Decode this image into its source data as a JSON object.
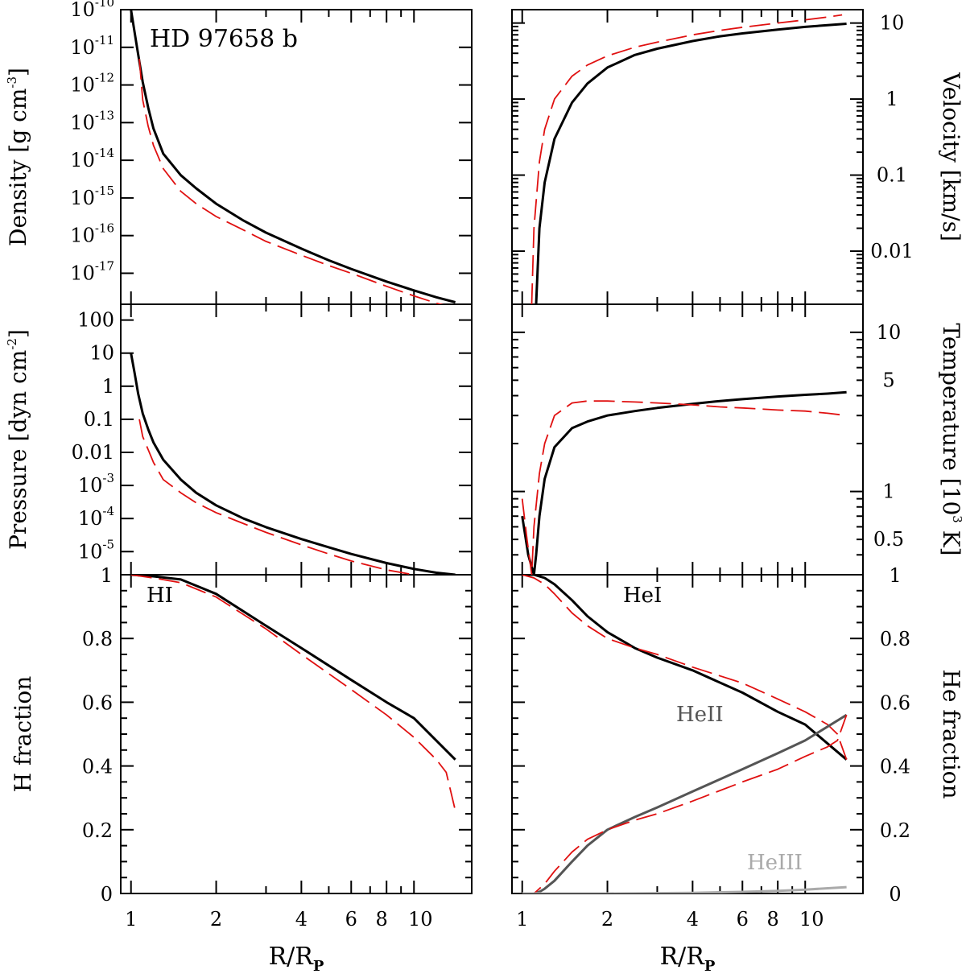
{
  "figure_title": "HD 97658 b",
  "colors": {
    "model_black": "#000000",
    "model_red": "#e01010",
    "heII": "#555555",
    "heIII": "#aaaaaa"
  },
  "x_axis": {
    "label_main": "R/R",
    "label_sub": "P",
    "ticks": [
      1,
      2,
      4,
      6,
      8,
      10
    ],
    "tick_labels": [
      "1",
      "2",
      "4",
      "6",
      "8",
      "10"
    ],
    "range": [
      0.92,
      16
    ]
  },
  "panels_text": {
    "density": {
      "ylabel": "Density [g cm",
      "ylabel_sup": "-3",
      "ylabel_end": "]",
      "tick_labels": [
        "10",
        "10",
        "10",
        "10",
        "10",
        "10",
        "10",
        "10"
      ],
      "tick_exps": [
        "-10",
        "-11",
        "-12",
        "-13",
        "-14",
        "-15",
        "-16",
        "-17"
      ]
    },
    "velocity": {
      "ylabel": "Velocity [km/s]",
      "tick_labels": [
        "10",
        "1",
        "0.1",
        "0.01"
      ]
    },
    "pressure": {
      "ylabel": "Pressure [dyn cm",
      "ylabel_sup": "-2",
      "ylabel_end": "]",
      "tick_labels": [
        "100",
        "10",
        "1",
        "0.1",
        "0.01",
        "10",
        "10",
        "10"
      ],
      "tick_exps": [
        "",
        "",
        "",
        "",
        "",
        "-3",
        "-4",
        "-5"
      ]
    },
    "temperature": {
      "ylabel": "Temperature [10",
      "ylabel_sup": "3",
      "ylabel_end": " K]",
      "tick_labels": [
        "10",
        "5",
        "1",
        "0.5"
      ]
    },
    "hfrac": {
      "ylabel": "H fraction",
      "tick_labels": [
        "1",
        "0.8",
        "0.6",
        "0.4",
        "0.2",
        "0"
      ],
      "annotation": "HI"
    },
    "hefrac": {
      "ylabel": "He fraction",
      "tick_labels": [
        "1",
        "0.8",
        "0.6",
        "0.4",
        "0.2",
        "0"
      ],
      "annotations": [
        "HeI",
        "HeII",
        "HeIII"
      ]
    }
  },
  "chart_data": [
    {
      "type": "line",
      "id": "density",
      "title": "HD 97658 b",
      "xlabel": "",
      "ylabel": "Density [g cm^-3]",
      "xscale": "log",
      "yscale": "log",
      "ylim": [
        1.5e-18,
        1e-10
      ],
      "series": [
        {
          "name": "model black",
          "x": [
            1.0,
            1.05,
            1.1,
            1.15,
            1.2,
            1.3,
            1.5,
            1.7,
            2.0,
            2.5,
            3.0,
            4.0,
            5.0,
            6.0,
            8.0,
            10.0,
            12.0,
            14.0
          ],
          "y": [
            1e-10,
            1e-11,
            1.2e-12,
            2.5e-13,
            7e-14,
            1.5e-14,
            4e-15,
            1.8e-15,
            7e-16,
            2.5e-16,
            1.2e-16,
            4.5e-17,
            2.2e-17,
            1.3e-17,
            6e-18,
            3.5e-18,
            2.3e-18,
            1.7e-18
          ]
        },
        {
          "name": "model red dashed",
          "x": [
            1.07,
            1.1,
            1.15,
            1.2,
            1.3,
            1.5,
            1.7,
            2.0,
            2.5,
            3.0,
            4.0,
            5.0,
            6.0,
            8.0,
            10.0,
            12.0,
            14.0
          ],
          "y": [
            5e-12,
            4e-13,
            8e-14,
            2.5e-14,
            6e-15,
            1.5e-15,
            7e-16,
            3.2e-16,
            1.4e-16,
            7e-17,
            3e-17,
            1.6e-17,
            1e-17,
            4.5e-18,
            2.5e-18,
            1.6e-18,
            1.2e-18
          ]
        }
      ]
    },
    {
      "type": "line",
      "id": "velocity",
      "xlabel": "",
      "ylabel": "Velocity [km/s]",
      "xscale": "log",
      "yscale": "log",
      "ylim": [
        0.002,
        15
      ],
      "series": [
        {
          "name": "model black",
          "x": [
            1.12,
            1.15,
            1.2,
            1.3,
            1.5,
            1.7,
            2.0,
            2.5,
            3.0,
            4.0,
            5.0,
            6.0,
            8.0,
            10.0,
            12.0,
            14.0
          ],
          "y": [
            0.002,
            0.02,
            0.08,
            0.3,
            0.9,
            1.6,
            2.6,
            3.8,
            4.6,
            5.8,
            6.7,
            7.3,
            8.2,
            8.9,
            9.4,
            9.8
          ]
        },
        {
          "name": "model red dashed",
          "x": [
            1.08,
            1.1,
            1.15,
            1.2,
            1.3,
            1.5,
            1.7,
            2.0,
            2.5,
            3.0,
            4.0,
            5.0,
            6.0,
            8.0,
            10.0,
            12.0,
            13.5
          ],
          "y": [
            0.002,
            0.02,
            0.15,
            0.4,
            1.0,
            2.0,
            2.8,
            3.7,
            4.8,
            5.6,
            7.0,
            8.0,
            8.8,
            10.0,
            11.0,
            12.0,
            12.8
          ]
        }
      ]
    },
    {
      "type": "line",
      "id": "pressure",
      "xlabel": "",
      "ylabel": "Pressure [dyn cm^-2]",
      "xscale": "log",
      "yscale": "log",
      "ylim": [
        2e-06,
        300
      ],
      "series": [
        {
          "name": "model black",
          "x": [
            1.0,
            1.03,
            1.06,
            1.1,
            1.15,
            1.2,
            1.3,
            1.5,
            1.7,
            2.0,
            2.5,
            3.0,
            4.0,
            5.0,
            6.0,
            8.0,
            10.0,
            12.0,
            14.0
          ],
          "y": [
            10,
            2.5,
            0.6,
            0.15,
            0.05,
            0.02,
            0.006,
            0.0015,
            0.0006,
            0.00025,
            0.0001,
            5.5e-05,
            2.4e-05,
            1.35e-05,
            8.5e-06,
            4.5e-06,
            3e-06,
            2.3e-06,
            2e-06
          ]
        },
        {
          "name": "model red dashed",
          "x": [
            1.07,
            1.1,
            1.15,
            1.2,
            1.3,
            1.5,
            1.7,
            2.0,
            2.5,
            3.0,
            4.0,
            5.0,
            6.0,
            8.0,
            10.0
          ],
          "y": [
            0.1,
            0.03,
            0.012,
            0.005,
            0.0015,
            0.0006,
            0.0003,
            0.00015,
            7e-05,
            3.8e-05,
            1.6e-05,
            8.5e-06,
            5.2e-06,
            2.8e-06,
            2e-06
          ]
        }
      ]
    },
    {
      "type": "line",
      "id": "temperature",
      "xlabel": "",
      "ylabel": "Temperature [10^3 K]",
      "xscale": "log",
      "yscale": "log",
      "ylim": [
        0.3,
        15
      ],
      "series": [
        {
          "name": "model black",
          "x": [
            1.0,
            1.05,
            1.1,
            1.12,
            1.15,
            1.2,
            1.3,
            1.5,
            1.7,
            2.0,
            2.5,
            3.0,
            4.0,
            5.0,
            6.0,
            8.0,
            10.0,
            12.0,
            14.0
          ],
          "y": [
            0.7,
            0.4,
            0.3,
            0.4,
            0.7,
            1.2,
            1.9,
            2.5,
            2.75,
            3.0,
            3.2,
            3.35,
            3.55,
            3.7,
            3.8,
            3.95,
            4.05,
            4.12,
            4.2
          ]
        },
        {
          "name": "model red dashed",
          "x": [
            1.0,
            1.04,
            1.08,
            1.1,
            1.15,
            1.2,
            1.3,
            1.5,
            1.7,
            2.0,
            2.5,
            3.0,
            4.0,
            5.0,
            6.0,
            8.0,
            10.0,
            12.0,
            14.0
          ],
          "y": [
            0.9,
            0.5,
            0.3,
            0.6,
            1.3,
            2.0,
            3.0,
            3.6,
            3.7,
            3.7,
            3.65,
            3.6,
            3.5,
            3.4,
            3.35,
            3.25,
            3.2,
            3.1,
            3.0
          ]
        }
      ]
    },
    {
      "type": "line",
      "id": "hfrac",
      "xlabel": "R/Rp",
      "ylabel": "H fraction",
      "xscale": "log",
      "yscale": "linear",
      "ylim": [
        0,
        1
      ],
      "series": [
        {
          "name": "HI black",
          "x": [
            1.0,
            1.2,
            1.5,
            2.0,
            3.0,
            4.0,
            6.0,
            8.0,
            10.0,
            14.0
          ],
          "y": [
            1.0,
            0.995,
            0.985,
            0.94,
            0.84,
            0.77,
            0.67,
            0.6,
            0.55,
            0.42
          ]
        },
        {
          "name": "HI red dashed",
          "x": [
            1.0,
            1.2,
            1.5,
            2.0,
            3.0,
            4.0,
            6.0,
            8.0,
            10.0,
            12.0,
            13.0,
            14.0
          ],
          "y": [
            1.0,
            0.99,
            0.975,
            0.93,
            0.83,
            0.75,
            0.64,
            0.56,
            0.49,
            0.42,
            0.38,
            0.26
          ]
        }
      ]
    },
    {
      "type": "line",
      "id": "hefrac",
      "xlabel": "R/Rp",
      "ylabel": "He fraction",
      "xscale": "log",
      "yscale": "linear",
      "ylim": [
        0,
        1
      ],
      "series": [
        {
          "name": "HeI black",
          "x": [
            1.0,
            1.1,
            1.2,
            1.3,
            1.5,
            1.7,
            2.0,
            2.5,
            3.0,
            4.0,
            6.0,
            8.0,
            10.0,
            14.0
          ],
          "y": [
            1.0,
            1.0,
            0.99,
            0.97,
            0.92,
            0.87,
            0.82,
            0.77,
            0.74,
            0.7,
            0.63,
            0.57,
            0.53,
            0.42
          ]
        },
        {
          "name": "HeI red dashed",
          "x": [
            1.0,
            1.1,
            1.2,
            1.3,
            1.5,
            1.7,
            2.0,
            2.5,
            3.0,
            4.0,
            6.0,
            8.0,
            10.0,
            12.0,
            13.0,
            14.0
          ],
          "y": [
            1.0,
            0.99,
            0.97,
            0.94,
            0.88,
            0.84,
            0.8,
            0.77,
            0.75,
            0.71,
            0.66,
            0.61,
            0.57,
            0.53,
            0.5,
            0.42
          ]
        },
        {
          "name": "HeII gray",
          "x": [
            1.0,
            1.1,
            1.15,
            1.2,
            1.3,
            1.5,
            1.7,
            2.0,
            2.5,
            3.0,
            4.0,
            6.0,
            8.0,
            10.0,
            14.0
          ],
          "y": [
            0.0,
            0.0,
            0.005,
            0.015,
            0.04,
            0.1,
            0.15,
            0.2,
            0.24,
            0.27,
            0.32,
            0.39,
            0.44,
            0.48,
            0.56
          ]
        },
        {
          "name": "HeII red dashed",
          "x": [
            1.0,
            1.1,
            1.2,
            1.3,
            1.5,
            1.7,
            2.0,
            2.5,
            3.0,
            4.0,
            6.0,
            8.0,
            10.0,
            12.0,
            13.0,
            14.0
          ],
          "y": [
            0.0,
            0.0,
            0.03,
            0.07,
            0.13,
            0.17,
            0.2,
            0.23,
            0.25,
            0.29,
            0.35,
            0.39,
            0.43,
            0.46,
            0.48,
            0.56
          ]
        },
        {
          "name": "HeIII light gray",
          "x": [
            1.0,
            2.0,
            4.0,
            6.0,
            8.0,
            10.0,
            14.0
          ],
          "y": [
            0.0,
            0.0,
            0.002,
            0.005,
            0.008,
            0.012,
            0.02
          ]
        }
      ]
    }
  ]
}
